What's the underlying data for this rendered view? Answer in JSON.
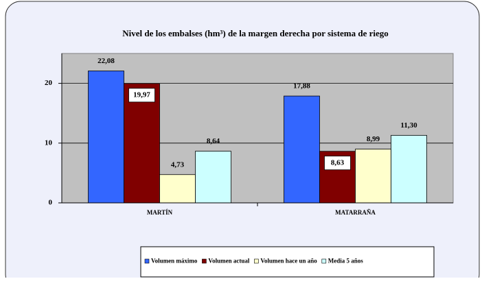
{
  "chart_data": {
    "type": "bar",
    "title": "Nivel de los embalses (hm³) de la margen derecha por sistema de riego",
    "categories": [
      "MARTÍN",
      "MATARRAÑA"
    ],
    "series": [
      {
        "name": "Volumen máximo",
        "color": "#3366ff",
        "values": [
          22.08,
          17.88
        ],
        "value_labels": [
          "22,08",
          "17,88"
        ]
      },
      {
        "name": "Volumen actual",
        "color": "#800000",
        "values": [
          19.97,
          8.63
        ],
        "value_labels": [
          "19,97",
          "8,63"
        ]
      },
      {
        "name": "Volumen hace un año",
        "color": "#ffffcc",
        "values": [
          4.73,
          8.99
        ],
        "value_labels": [
          "4,73",
          "8,99"
        ]
      },
      {
        "name": "Media 5 años",
        "color": "#ccffff",
        "values": [
          8.64,
          11.3
        ],
        "value_labels": [
          "8,64",
          "11,30"
        ]
      }
    ],
    "ylim": [
      0,
      25
    ],
    "yticks": [
      0,
      10,
      20
    ],
    "grid": true
  }
}
